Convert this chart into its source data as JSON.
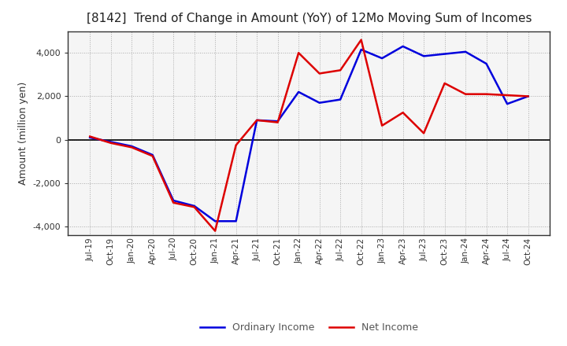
{
  "title": "[8142]  Trend of Change in Amount (YoY) of 12Mo Moving Sum of Incomes",
  "ylabel": "Amount (million yen)",
  "ylim": [
    -4400,
    5000
  ],
  "yticks": [
    -4000,
    -2000,
    0,
    2000,
    4000
  ],
  "background_color": "#ffffff",
  "plot_bg_color": "#f5f5f5",
  "grid_color": "#aaaaaa",
  "x_labels": [
    "Jul-19",
    "Oct-19",
    "Jan-20",
    "Apr-20",
    "Jul-20",
    "Oct-20",
    "Jan-21",
    "Apr-21",
    "Jul-21",
    "Oct-21",
    "Jan-22",
    "Apr-22",
    "Jul-22",
    "Oct-22",
    "Jan-23",
    "Apr-23",
    "Jul-23",
    "Oct-23",
    "Jan-24",
    "Apr-24",
    "Jul-24",
    "Oct-24"
  ],
  "ordinary_income": [
    100,
    -100,
    -300,
    -700,
    -2800,
    -3050,
    -3750,
    -3750,
    900,
    850,
    2200,
    1700,
    1850,
    4150,
    3750,
    4300,
    3850,
    3950,
    4050,
    3500,
    1650,
    2000
  ],
  "net_income": [
    150,
    -150,
    -350,
    -750,
    -2900,
    -3100,
    -4200,
    -250,
    900,
    800,
    4000,
    3050,
    3200,
    4600,
    650,
    1250,
    300,
    2600,
    2100,
    2100,
    2050,
    2000
  ],
  "ordinary_color": "#0000dd",
  "net_color": "#dd0000",
  "line_width": 1.8
}
